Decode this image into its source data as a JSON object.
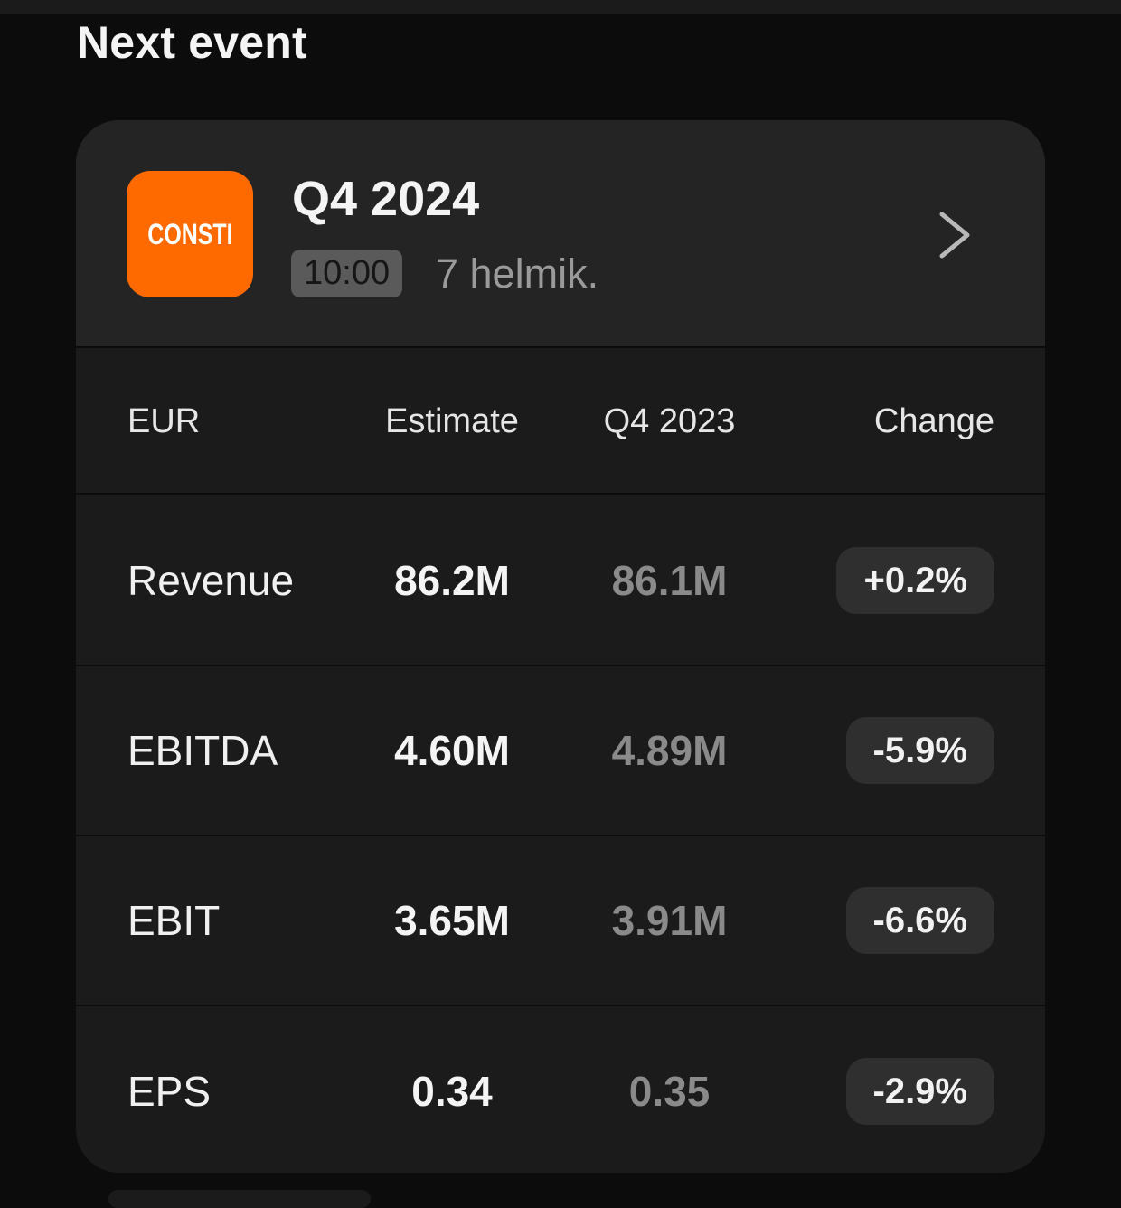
{
  "section": {
    "title": "Next event"
  },
  "event": {
    "company_logo_text": "CONSTI",
    "period": "Q4 2024",
    "time": "10:00",
    "date": "7 helmik.",
    "chevron_icon": "chevron-right-icon",
    "logo_color": "#ff6a00"
  },
  "table": {
    "headers": {
      "currency": "EUR",
      "estimate": "Estimate",
      "previous": "Q4 2023",
      "change": "Change"
    },
    "rows": [
      {
        "label": "Revenue",
        "estimate": "86.2M",
        "previous": "86.1M",
        "change": "+0.2%"
      },
      {
        "label": "EBITDA",
        "estimate": "4.60M",
        "previous": "4.89M",
        "change": "-5.9%"
      },
      {
        "label": "EBIT",
        "estimate": "3.65M",
        "previous": "3.91M",
        "change": "-6.6%"
      },
      {
        "label": "EPS",
        "estimate": "0.34",
        "previous": "0.35",
        "change": "-2.9%"
      }
    ]
  }
}
